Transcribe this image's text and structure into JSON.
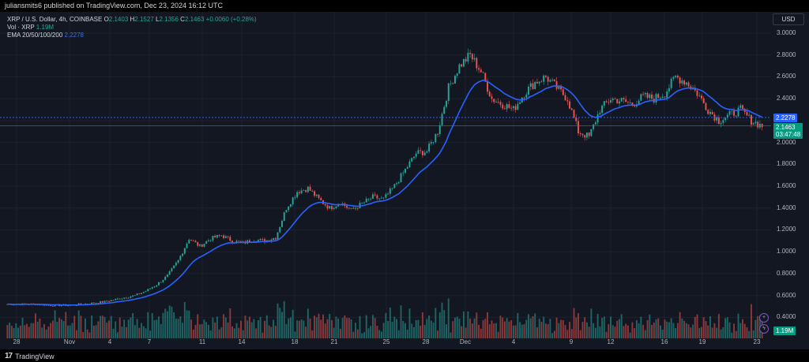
{
  "header": {
    "published": "juliansmits6 published on TradingView.com, Dec 23, 2024 16:12 UTC"
  },
  "legend": {
    "symbol": "XRP / U.S. Dollar, 4h, COINBASE",
    "o_label": "O",
    "o": "2.1403",
    "h_label": "H",
    "h": "2.1527",
    "l_label": "L",
    "l": "2.1356",
    "c_label": "C",
    "c": "2.1463",
    "change": "+0.0060 (+0.28%)",
    "vol_label": "Vol · XRP",
    "vol": "1.19M",
    "ema_label": "EMA 20/50/100/200",
    "ema": "2.2278"
  },
  "price_axis": {
    "currency": "USD",
    "ticks": [
      "3.0000",
      "2.8000",
      "2.6000",
      "2.4000",
      "2.2000",
      "2.0000",
      "1.8000",
      "1.6000",
      "1.4000",
      "1.2000",
      "1.0000",
      "0.8000",
      "0.6000",
      "0.4000"
    ],
    "ema_tag": "2.2278",
    "last_price_tag": "2.1463",
    "countdown": "03:47:48",
    "volume_tag": "1.19M"
  },
  "time_axis": {
    "labels": [
      "28",
      "Nov",
      "4",
      "7",
      "11",
      "14",
      "18",
      "21",
      "25",
      "28",
      "Dec",
      "4",
      "9",
      "12",
      "16",
      "19",
      "23"
    ]
  },
  "colors": {
    "up": "#26a69a",
    "down": "#ef5350",
    "ema": "#2962ff",
    "background": "#131722"
  },
  "footer": {
    "brand": "TradingView"
  },
  "chart_data": {
    "type": "candlestick",
    "title": "XRP / U.S. Dollar, 4h, COINBASE",
    "ylim": [
      0.3,
      3.05
    ],
    "x_ticks": [
      "28",
      "Nov",
      "4",
      "7",
      "11",
      "14",
      "18",
      "21",
      "25",
      "28",
      "Dec",
      "4",
      "9",
      "12",
      "16",
      "19",
      "23"
    ],
    "series": [
      {
        "name": "XRP price (approx close, 4h)",
        "values": [
          0.52,
          0.52,
          0.52,
          0.52,
          0.51,
          0.51,
          0.51,
          0.52,
          0.53,
          0.54,
          0.56,
          0.58,
          0.6,
          0.64,
          0.7,
          0.78,
          0.92,
          1.12,
          1.05,
          1.12,
          1.15,
          1.1,
          1.08,
          1.11,
          1.1,
          1.13,
          1.4,
          1.55,
          1.58,
          1.48,
          1.4,
          1.45,
          1.38,
          1.44,
          1.5,
          1.48,
          1.6,
          1.75,
          1.9,
          1.92,
          2.1,
          2.5,
          2.7,
          2.8,
          2.65,
          2.4,
          2.35,
          2.3,
          2.45,
          2.55,
          2.6,
          2.5,
          2.4,
          2.1,
          2.05,
          2.3,
          2.4,
          2.38,
          2.35,
          2.42,
          2.4,
          2.45,
          2.6,
          2.55,
          2.45,
          2.3,
          2.2,
          2.25,
          2.3,
          2.2,
          2.15
        ]
      },
      {
        "name": "EMA",
        "values_last": 2.2278
      }
    ],
    "volume_last": "1.19M"
  }
}
